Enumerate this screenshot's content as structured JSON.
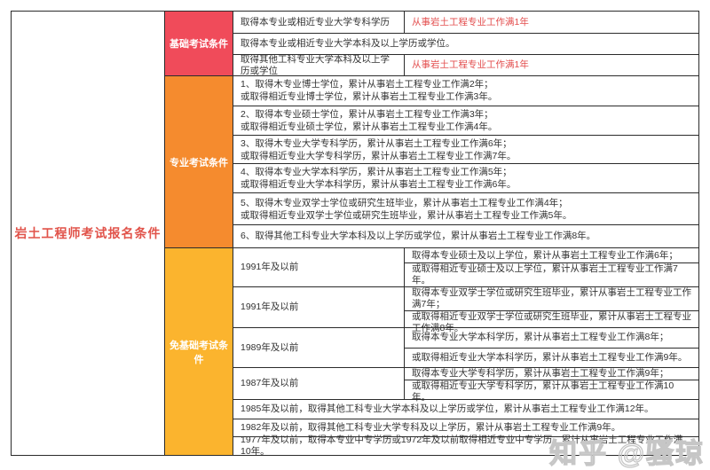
{
  "page_title": "岩土工程师考试报名条件",
  "colors": {
    "basic_section": "#f04b5a",
    "professional_section": "#f58b2e",
    "exempt_section": "#fbb42e",
    "red_text": "#e34d4d",
    "title_text": "#e1534a"
  },
  "basic": {
    "label": "基础考试条件",
    "row1_left": "取得本专业或相近专业大学专科学历",
    "row1_right": "从事岩土工程专业工作满1年",
    "row2_full": "取得本专业或相近专业大学本科及以上学历或学位。",
    "row3_left": "取得其他工科专业大学本科及以上学历或学位",
    "row3_right": "从事岩土工程专业工作满1年"
  },
  "professional": {
    "label": "专业考试条件",
    "rows": [
      {
        "line1": "1、取得木专业博士学位，累计从事岩土工程专业工作满2年；",
        "line2": "或取得相近专业博士学位，累计从事岩土工程专业工作满3年。"
      },
      {
        "line1": "2、取得本专业硕士学位，累计从事岩土工程专业工作满3年；",
        "line2": "或取得相近专业硕士学位，累计从事岩土工程专业工作满4年。"
      },
      {
        "line1": "3、取得木专业大学专科学历，累计从事岩土工程专业工作满6年；",
        "line2": "或取得相近专业大学专科学历，累计从事岩土工程专业工作满7年。"
      },
      {
        "line1": "4、取得本专业大学本科学历，累计从事岩土工程专业工作满5年；",
        "line2": "或取得相近专业大学本科学历，累计从事岩土工程专业工作满6年。"
      },
      {
        "line1": "5、取得木专业双学士学位或研究生班毕业，累计从事岩土工程专业工作满4年；",
        "line2": "或取得相近专业双学士学位或研究生班毕业，累计从事岩土工程专业工作满5年。"
      },
      {
        "line1": "6、取得其他工科专业大学本科及以上学历或学位，累计从事岩土工程专业工作满8年。"
      }
    ]
  },
  "exempt": {
    "label": "免基础考试条件",
    "year_rows": [
      {
        "year": "1991年及以前",
        "sub1": "取得本专业硕士及以上学位，累计从事岩土工程专业工作满6年；",
        "sub2": "或取得相近专业硕士及以上学位，累计从事岩土工程专业工作满7年。"
      },
      {
        "year": "1991年及以前",
        "sub1": "取得本专业双学士学位或研究生班毕业，累计从事岩土工程专业工作满7年；",
        "sub2": "或取得相近专业双学士学位或研究生班毕业，累计从事岩土工程专业工作满8年。"
      },
      {
        "year": "1989年及以前",
        "sub1": "取得本专业大学本科学历，累计从事岩土工程专业工作满8年；",
        "sub2": "或取得相近专业大学本科学历，累计从事岩土工程专业工作满9年。"
      },
      {
        "year": "1987年及以前",
        "sub1": "取得本专业大学专科学历，累计从事岩土工程专业工作满9年；",
        "sub2": "或取得相近专业大学专科学历，累计从事岩土工程专业工作满10年。"
      }
    ],
    "full_rows": [
      "1985年及以前，取得其他工科专业大学本科及以上学历或学位，累计从事岩土工程专业工作满12年。",
      "1982年及以前，取得其他工科专业大学专科及以上学历，累计从事岩土工程专业工作满9年。",
      "1977年及以前，取得本专业中专学历或1972年及以前取得相近专业中专学历，累计从事岩土工程专业工作满10年。"
    ]
  },
  "watermark": "知乎 @骚琼"
}
